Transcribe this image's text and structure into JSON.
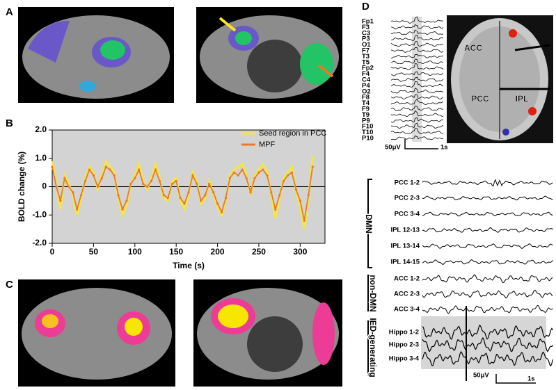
{
  "panel_labels": [
    "A",
    "B",
    "C",
    "D"
  ],
  "chart_data": {
    "type": "line",
    "xlabel": "Time (s)",
    "ylabel": "BOLD change (%)",
    "x": [
      0,
      5,
      10,
      15,
      20,
      25,
      30,
      35,
      40,
      45,
      50,
      55,
      60,
      65,
      70,
      75,
      80,
      85,
      90,
      95,
      100,
      105,
      110,
      115,
      120,
      125,
      130,
      135,
      140,
      145,
      150,
      155,
      160,
      165,
      170,
      175,
      180,
      185,
      190,
      195,
      200,
      205,
      210,
      215,
      220,
      225,
      230,
      235,
      240,
      245,
      250,
      255,
      260,
      265,
      270,
      275,
      280,
      285,
      290,
      295,
      300,
      305,
      310,
      315
    ],
    "series": [
      {
        "name": "Seed region in PCC",
        "color": "#f5e642",
        "values": [
          0.9,
          0.1,
          -0.8,
          0.4,
          0.1,
          -0.3,
          -1.0,
          -0.4,
          0.3,
          0.7,
          0.5,
          -0.1,
          0.4,
          0.9,
          0.7,
          0.5,
          -0.4,
          -1.0,
          -0.7,
          0.1,
          0.4,
          0.8,
          0.2,
          -0.1,
          0.3,
          0.8,
          0.3,
          -0.4,
          -0.5,
          0.2,
          0.3,
          -0.5,
          -0.8,
          -0.3,
          0.5,
          0.2,
          -0.6,
          -0.4,
          0.2,
          -0.3,
          -0.7,
          -1.0,
          -0.5,
          0.4,
          0.6,
          0.7,
          0.8,
          0.4,
          -0.3,
          0.4,
          0.6,
          0.8,
          0.5,
          -0.3,
          -1.1,
          -0.4,
          0.3,
          0.5,
          0.7,
          -0.2,
          -0.7,
          -1.5,
          -0.4,
          1.1
        ]
      },
      {
        "name": "MPF",
        "color": "#e8792a",
        "values": [
          0.7,
          0.0,
          -0.5,
          0.3,
          0.0,
          -0.2,
          -0.8,
          -0.3,
          0.2,
          0.6,
          0.4,
          0.0,
          0.3,
          0.7,
          0.6,
          0.4,
          -0.3,
          -0.8,
          -0.5,
          0.1,
          0.3,
          0.6,
          0.1,
          0.0,
          0.2,
          0.6,
          0.2,
          -0.3,
          -0.4,
          0.1,
          0.2,
          -0.4,
          -0.6,
          -0.2,
          0.4,
          0.1,
          -0.5,
          -0.3,
          0.1,
          -0.2,
          -0.6,
          -0.9,
          -0.4,
          0.3,
          0.5,
          0.4,
          0.6,
          0.3,
          -0.2,
          0.3,
          0.5,
          0.6,
          0.4,
          -0.2,
          -0.8,
          -0.3,
          0.2,
          0.4,
          0.5,
          -0.1,
          -0.5,
          -1.2,
          -0.3,
          0.7
        ]
      }
    ],
    "xlim": [
      0,
      330
    ],
    "xticks": [
      0,
      50,
      100,
      150,
      200,
      250,
      300
    ],
    "ylim": [
      -2,
      2
    ],
    "yticks": [
      {
        "value": -2,
        "label": "-2.0"
      },
      {
        "value": -1,
        "label": "-1.0"
      },
      0,
      {
        "value": 1,
        "label": "1.0"
      },
      {
        "value": 2,
        "label": "2.0"
      }
    ],
    "legend": "upper right"
  },
  "panel_d": {
    "top_channels": [
      "Fp1",
      "F3",
      "C3",
      "P3",
      "O1",
      "F7",
      "T3",
      "T5",
      "Fp2",
      "F4",
      "C4",
      "P4",
      "O2",
      "F8",
      "T4",
      "F9",
      "T9",
      "P9",
      "F10",
      "T10",
      "P10"
    ],
    "top_scale": {
      "amplitude": "50μV",
      "time": "1s"
    },
    "mri_labels": [
      "ACC",
      "PCC",
      "IPL"
    ],
    "bottom_channels": [
      "PCC 1-2",
      "PCC 2-3",
      "PCC 3-4",
      "IPL 12-13",
      "IPL 13-14",
      "IPL 14-15",
      "ACC 1-2",
      "ACC 2-3",
      "ACC 3-4",
      "Hippo 1-2",
      "Hippo 2-3",
      "Hippo 3-4"
    ],
    "groups": [
      "DMN",
      "non-DMN",
      "IED-generating"
    ],
    "bottom_scale": {
      "amplitude": "50μV",
      "time": "1s"
    }
  }
}
